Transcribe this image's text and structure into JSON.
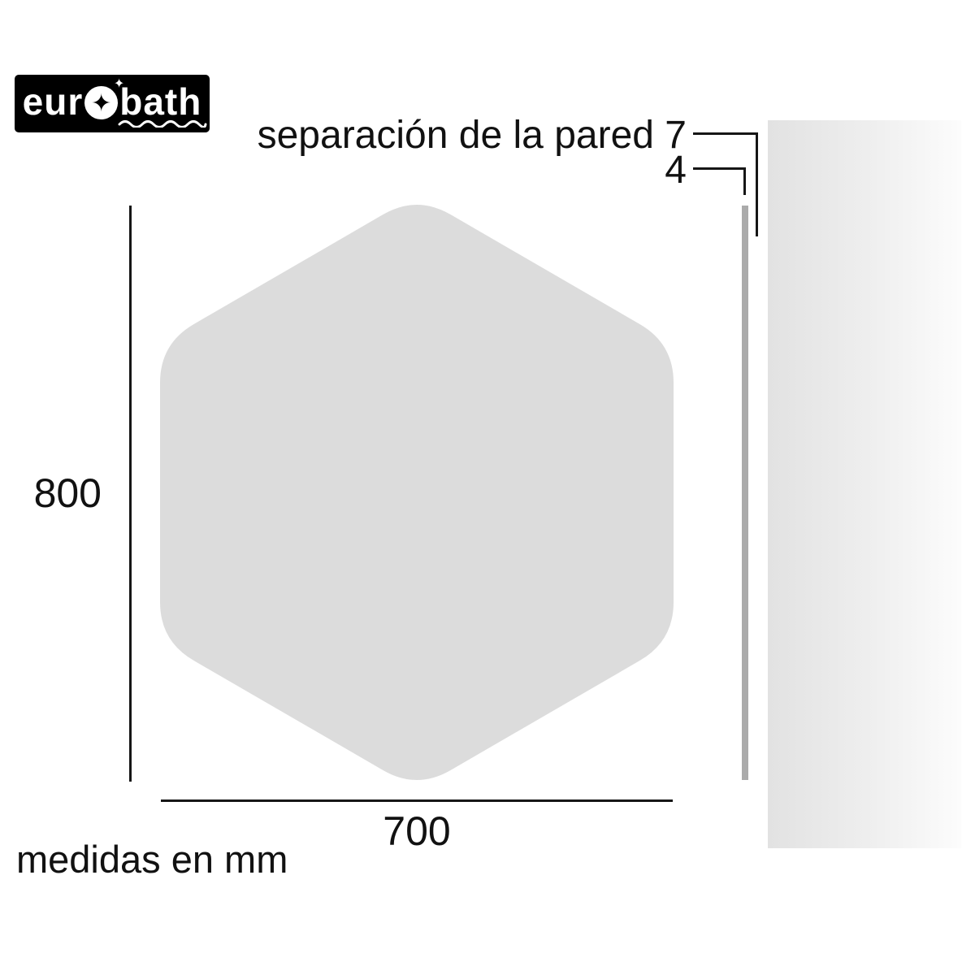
{
  "logo": {
    "left": "eur",
    "right": "bath",
    "star": "✦"
  },
  "annotations": {
    "separation": {
      "label": "separación de la pared",
      "value": "7"
    },
    "thickness": {
      "value": "4"
    }
  },
  "dimensions": {
    "height": "800",
    "width": "700"
  },
  "note": "medidas en mm",
  "colors": {
    "mirror": "#dcdcdc",
    "mirror_side": "#ababab",
    "wall_start": "#e2e2e2",
    "wall_end": "#fcfcfc",
    "line": "#161616",
    "logo_bg": "#000000",
    "logo_fg": "#ffffff"
  }
}
